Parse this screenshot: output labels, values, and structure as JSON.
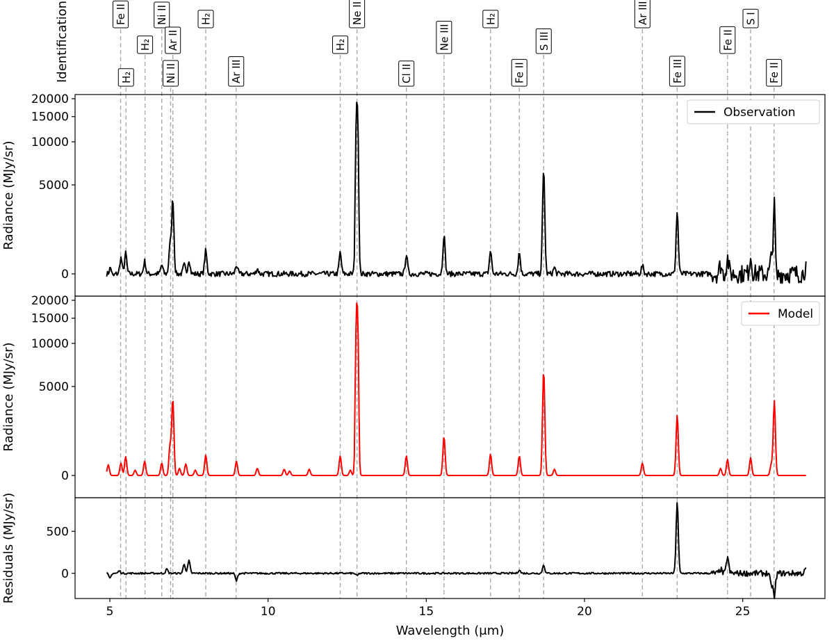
{
  "identification_title": "Identification",
  "chart_data": [
    {
      "panel": "observation",
      "type": "line",
      "ylabel": "Radiance (MJy/sr)",
      "yscale": "symlog",
      "ylim": [
        -500,
        20000
      ],
      "xlim": [
        3.9,
        27.6
      ],
      "yticks": [
        0,
        5000,
        10000,
        15000,
        20000
      ],
      "yticklabels": [
        "0",
        "5000",
        "10000",
        "15000",
        "20000"
      ],
      "legend": {
        "label": "Observation",
        "color": "#000000",
        "position": "top-right"
      },
      "series_color": "#000000",
      "baseline_jitter": 150,
      "points": [
        [
          4.9,
          0
        ],
        [
          5.02,
          350
        ],
        [
          5.1,
          -150
        ],
        [
          5.35,
          900
        ],
        [
          5.5,
          1150
        ],
        [
          6.1,
          700
        ],
        [
          6.64,
          500
        ],
        [
          6.9,
          1600
        ],
        [
          6.99,
          4200
        ],
        [
          7.35,
          500
        ],
        [
          7.5,
          800
        ],
        [
          8.03,
          1300
        ],
        [
          9.0,
          500
        ],
        [
          9.66,
          300
        ],
        [
          12.28,
          1200
        ],
        [
          12.81,
          19800
        ],
        [
          14.37,
          1100
        ],
        [
          15.56,
          2200
        ],
        [
          17.03,
          1300
        ],
        [
          17.94,
          1200
        ],
        [
          18.71,
          6200
        ],
        [
          19.05,
          350
        ],
        [
          21.83,
          450
        ],
        [
          22.93,
          3500
        ],
        [
          24.3,
          500
        ],
        [
          24.52,
          900
        ],
        [
          25.25,
          1000
        ],
        [
          25.9,
          800
        ],
        [
          26.0,
          4100
        ],
        [
          26.05,
          -800
        ],
        [
          27.0,
          500
        ]
      ]
    },
    {
      "panel": "model",
      "type": "line",
      "ylabel": "Radiance (MJy/sr)",
      "yscale": "symlog",
      "ylim": [
        -100,
        20000
      ],
      "xlim": [
        3.9,
        27.6
      ],
      "yticks": [
        0,
        5000,
        10000,
        15000,
        20000
      ],
      "yticklabels": [
        "0",
        "5000",
        "10000",
        "15000",
        "20000"
      ],
      "legend": {
        "label": "Model",
        "color": "#ff0000",
        "position": "top-right"
      },
      "series_color": "#ff0000",
      "baseline_jitter": 0,
      "points": [
        [
          4.9,
          0
        ],
        [
          4.95,
          600
        ],
        [
          5.35,
          700
        ],
        [
          5.5,
          1050
        ],
        [
          5.8,
          300
        ],
        [
          6.1,
          800
        ],
        [
          6.64,
          700
        ],
        [
          6.9,
          1650
        ],
        [
          6.99,
          4300
        ],
        [
          7.2,
          400
        ],
        [
          7.4,
          650
        ],
        [
          7.7,
          300
        ],
        [
          8.03,
          1150
        ],
        [
          9.0,
          800
        ],
        [
          9.66,
          400
        ],
        [
          10.51,
          350
        ],
        [
          10.68,
          250
        ],
        [
          11.3,
          350
        ],
        [
          12.28,
          1100
        ],
        [
          12.6,
          300
        ],
        [
          12.81,
          19900
        ],
        [
          14.37,
          1100
        ],
        [
          15.56,
          2200
        ],
        [
          17.03,
          1200
        ],
        [
          17.94,
          1100
        ],
        [
          18.71,
          6300
        ],
        [
          19.05,
          350
        ],
        [
          21.83,
          700
        ],
        [
          22.93,
          3400
        ],
        [
          24.3,
          400
        ],
        [
          24.52,
          900
        ],
        [
          25.25,
          1000
        ],
        [
          25.9,
          600
        ],
        [
          26.0,
          4200
        ],
        [
          27.0,
          0
        ]
      ]
    },
    {
      "panel": "residuals",
      "type": "line",
      "ylabel": "Residuals (MJy/sr)",
      "xlabel": "Wavelength (μm)",
      "ylim": [
        -300,
        900
      ],
      "xlim": [
        3.9,
        27.6
      ],
      "yticks": [
        0,
        500
      ],
      "yticklabels": [
        "0",
        "500"
      ],
      "xticks": [
        5,
        10,
        15,
        20,
        25
      ],
      "xticklabels": [
        "5",
        "10",
        "15",
        "20",
        "25"
      ],
      "series_color": "#000000",
      "baseline_jitter": 10,
      "points": [
        [
          4.9,
          0
        ],
        [
          5.0,
          -60
        ],
        [
          5.3,
          30
        ],
        [
          6.8,
          50
        ],
        [
          7.35,
          110
        ],
        [
          7.5,
          150
        ],
        [
          9.0,
          -90
        ],
        [
          12.81,
          -30
        ],
        [
          17.94,
          40
        ],
        [
          18.71,
          100
        ],
        [
          22.93,
          850
        ],
        [
          24.3,
          50
        ],
        [
          24.52,
          200
        ],
        [
          25.9,
          -150
        ],
        [
          26.0,
          -290
        ],
        [
          27.0,
          50
        ]
      ]
    }
  ],
  "line_identifications": [
    {
      "wavelength": 5.34,
      "label": "Fe II",
      "row": "upper"
    },
    {
      "wavelength": 5.51,
      "label": "H₂",
      "row": "lower"
    },
    {
      "wavelength": 6.11,
      "label": "H₂",
      "row": "middle"
    },
    {
      "wavelength": 6.64,
      "label": "Ni II",
      "row": "upper"
    },
    {
      "wavelength": 6.92,
      "label": "Ni II",
      "row": "lower"
    },
    {
      "wavelength": 6.99,
      "label": "Ar II",
      "row": "middle"
    },
    {
      "wavelength": 8.03,
      "label": "H₂",
      "row": "upper"
    },
    {
      "wavelength": 8.99,
      "label": "Ar III",
      "row": "lower"
    },
    {
      "wavelength": 12.28,
      "label": "H₂",
      "row": "middle"
    },
    {
      "wavelength": 12.81,
      "label": "Ne II",
      "row": "upper"
    },
    {
      "wavelength": 14.37,
      "label": "Cl II",
      "row": "lower"
    },
    {
      "wavelength": 15.56,
      "label": "Ne III",
      "row": "middle"
    },
    {
      "wavelength": 17.03,
      "label": "H₂",
      "row": "upper"
    },
    {
      "wavelength": 17.94,
      "label": "Fe II",
      "row": "lower"
    },
    {
      "wavelength": 18.71,
      "label": "S III",
      "row": "middle"
    },
    {
      "wavelength": 21.83,
      "label": "Ar III",
      "row": "upper"
    },
    {
      "wavelength": 22.93,
      "label": "Fe III",
      "row": "lower"
    },
    {
      "wavelength": 24.52,
      "label": "Fe II",
      "row": "middle"
    },
    {
      "wavelength": 25.25,
      "label": "S I",
      "row": "upper"
    },
    {
      "wavelength": 25.99,
      "label": "Fe II",
      "row": "lower"
    }
  ]
}
